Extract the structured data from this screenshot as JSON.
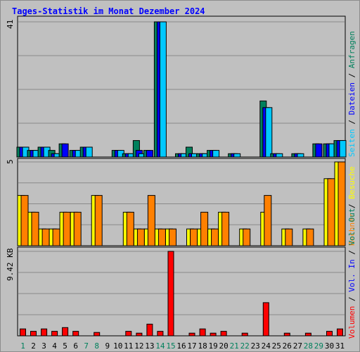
{
  "title": "Tages-Statistik im Monat Dezember 2024",
  "colors": {
    "background": "#c0c0c0",
    "grid": "#8a8a8a",
    "title": "#0000ff",
    "hits": "#00805c",
    "files": "#0000ff",
    "pages": "#00c8ff",
    "visits": "#ffff00",
    "sites": "#ff8000",
    "kbytes": "#ff0000",
    "weekend_label": "#00805c",
    "weekday_label": "#000000"
  },
  "panels": {
    "top": {
      "max_label": "41",
      "min_label": "5",
      "legend": [
        {
          "text": "Anfragen",
          "color": "#00805c"
        },
        {
          "text": "Dateien",
          "color": "#0000ff"
        },
        {
          "text": "Seiten",
          "color": "#00c8ff"
        }
      ]
    },
    "middle": {
      "max_label": "5",
      "legend": [
        {
          "text": "Besuche",
          "color": "#ffff00"
        },
        {
          "text": "Rechner",
          "color": "#ff8000"
        }
      ]
    },
    "bottom": {
      "max_label": "9.42 KB",
      "legend": [
        {
          "text": "Vol. Out",
          "color": "#00805c"
        },
        {
          "text": "Vol. In",
          "color": "#0000ff"
        },
        {
          "text": "Volumen",
          "color": "#ff0000"
        }
      ]
    }
  },
  "legend_separator": " / ",
  "chart_data": {
    "type": "bar",
    "title": "Tages-Statistik im Monat Dezember 2024",
    "categories": [
      "1",
      "2",
      "3",
      "4",
      "5",
      "6",
      "7",
      "8",
      "9",
      "10",
      "11",
      "12",
      "13",
      "14",
      "15",
      "16",
      "17",
      "18",
      "19",
      "20",
      "21",
      "22",
      "23",
      "24",
      "25",
      "26",
      "27",
      "28",
      "29",
      "30",
      "31"
    ],
    "weekend_days": [
      "1",
      "7",
      "8",
      "14",
      "15",
      "21",
      "22",
      "28",
      "29"
    ],
    "panels": [
      {
        "name": "top",
        "ylim": [
          0,
          41
        ],
        "series": [
          {
            "name": "Anfragen",
            "color": "#00805c",
            "values": [
              3,
              2,
              3,
              2,
              4,
              2,
              3,
              0,
              0,
              2,
              1,
              5,
              2,
              41,
              0,
              1,
              3,
              1,
              2,
              0,
              1,
              0,
              0,
              17,
              1,
              0,
              1,
              0,
              4,
              4,
              5
            ]
          },
          {
            "name": "Dateien",
            "color": "#0000ff",
            "values": [
              3,
              2,
              3,
              1,
              4,
              2,
              3,
              0,
              0,
              2,
              1,
              2,
              2,
              41,
              0,
              1,
              1,
              1,
              2,
              0,
              1,
              0,
              0,
              15,
              1,
              0,
              1,
              0,
              4,
              4,
              5
            ]
          },
          {
            "name": "Seiten",
            "color": "#00c8ff",
            "values": [
              3,
              2,
              3,
              1,
              0,
              2,
              3,
              0,
              0,
              2,
              1,
              1,
              0,
              41,
              0,
              1,
              1,
              1,
              2,
              0,
              1,
              0,
              0,
              15,
              1,
              0,
              1,
              0,
              0,
              4,
              5
            ]
          }
        ]
      },
      {
        "name": "middle",
        "ylim": [
          0,
          5
        ],
        "series": [
          {
            "name": "Besuche",
            "color": "#ffff00",
            "values": [
              3,
              2,
              1,
              1,
              2,
              2,
              0,
              3,
              0,
              0,
              2,
              1,
              1,
              1,
              1,
              0,
              1,
              1,
              1,
              2,
              0,
              1,
              0,
              2,
              0,
              1,
              0,
              1,
              0,
              4,
              5
            ]
          },
          {
            "name": "Rechner",
            "color": "#ff8000",
            "values": [
              3,
              2,
              1,
              1,
              2,
              2,
              0,
              3,
              0,
              0,
              2,
              1,
              3,
              1,
              1,
              0,
              1,
              2,
              1,
              2,
              0,
              1,
              0,
              3,
              0,
              1,
              0,
              1,
              0,
              4,
              5
            ]
          }
        ]
      },
      {
        "name": "bottom",
        "ylim": [
          0,
          9.42
        ],
        "ylabel": "9.42 KB",
        "series": [
          {
            "name": "Volumen",
            "color": "#ff0000",
            "values": [
              0.77,
              0.5,
              0.77,
              0.5,
              0.92,
              0.5,
              0,
              0.38,
              0,
              0,
              0.5,
              0.3,
              1.3,
              0.5,
              9.42,
              0,
              0.3,
              0.77,
              0.3,
              0.5,
              0,
              0.3,
              0,
              3.7,
              0,
              0.3,
              0,
              0.3,
              0,
              0.5,
              0.77
            ]
          }
        ]
      }
    ]
  }
}
